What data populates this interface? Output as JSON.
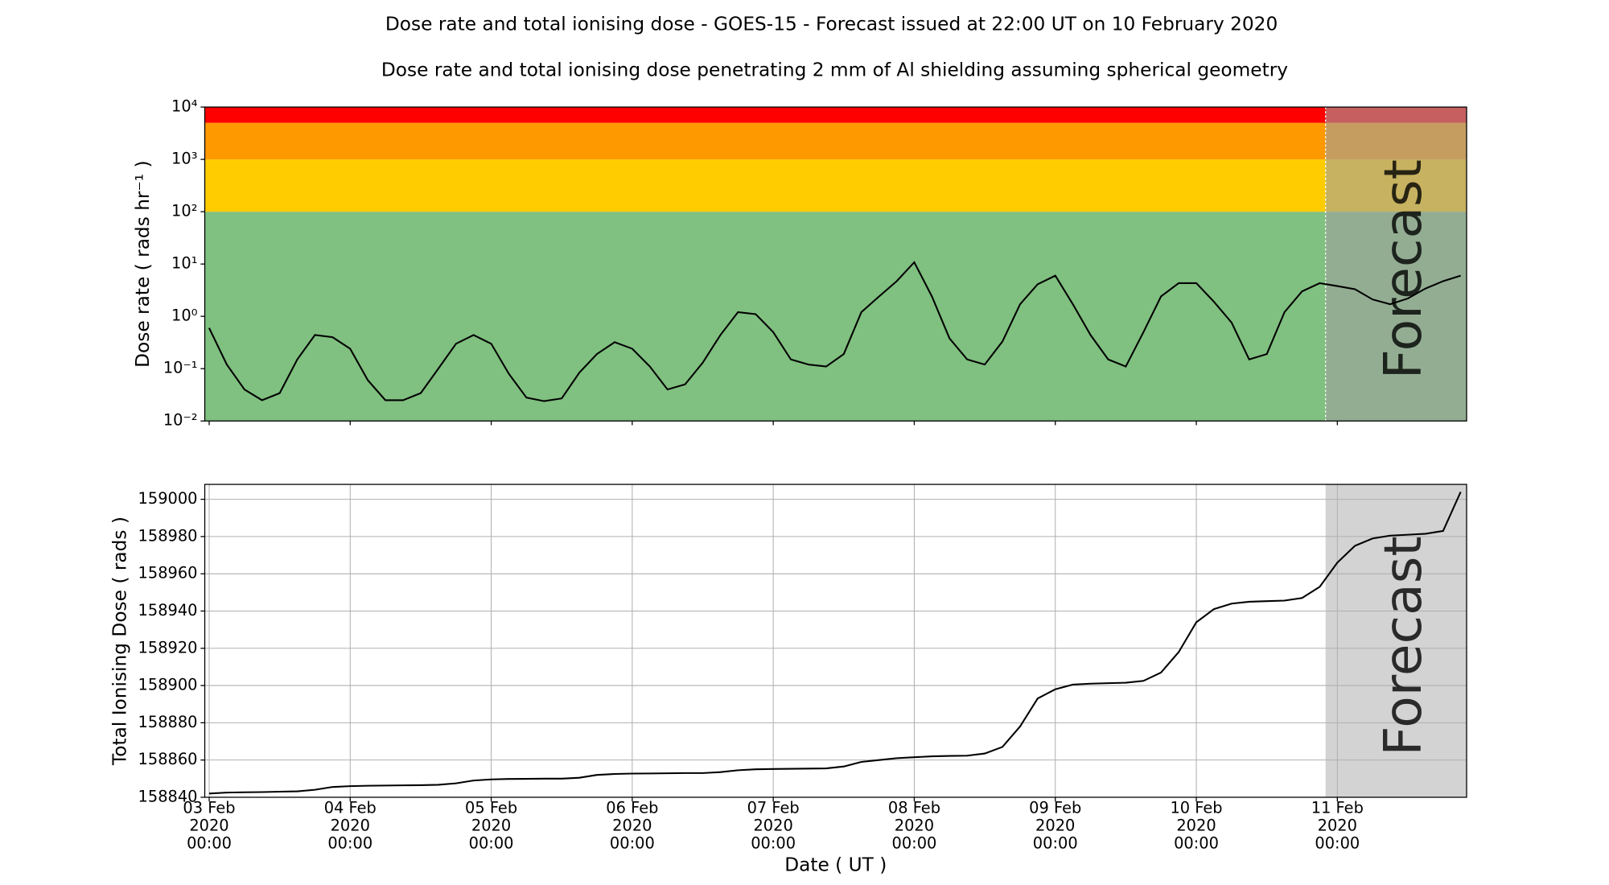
{
  "chart_data": [
    {
      "type": "line",
      "title": "Dose rate and total ionising dose - GOES-15 - Forecast issued at 22:00 UT on 10 February 2020",
      "subtitle": "Dose rate and total ionising dose penetrating 2 mm of Al shielding assuming spherical geometry",
      "y_label": "Dose rate ( rads hr⁻¹ )",
      "log_y": true,
      "grid": false,
      "color": "#000000",
      "bands": [
        {
          "ylim": [
            0.01,
            100
          ],
          "color": "#80c080"
        },
        {
          "ylim": [
            100,
            1000
          ],
          "color": "#ffcc00"
        },
        {
          "ylim": [
            1000,
            5000
          ],
          "color": "#ff9900"
        },
        {
          "ylim": [
            5000,
            10000
          ],
          "color": "#ff0000"
        }
      ],
      "forecast": {
        "label": "Forecast",
        "start": "2020-02-10 22:00",
        "color": "#a0a0a0"
      },
      "xlim": [
        "2020-02-02 23:15",
        "2020-02-11 22:00"
      ],
      "xticks": [
        "2020-02-03 00:00",
        "2020-02-04 00:00",
        "2020-02-05 00:00",
        "2020-02-06 00:00",
        "2020-02-07 00:00",
        "2020-02-08 00:00",
        "2020-02-09 00:00",
        "2020-02-10 00:00",
        "2020-02-11 00:00"
      ],
      "ylim": [
        0.01,
        10000
      ],
      "yticks": [
        {
          "value": 0.01,
          "label": "10⁻²"
        },
        {
          "value": 0.1,
          "label": "10⁻¹"
        },
        {
          "value": 1,
          "label": "10⁰"
        },
        {
          "value": 10,
          "label": "10¹"
        },
        {
          "value": 100,
          "label": "10²"
        },
        {
          "value": 1000,
          "label": "10³"
        },
        {
          "value": 10000,
          "label": "10⁴"
        }
      ],
      "x": [
        "2020-02-03 00:00",
        "2020-02-03 03:00",
        "2020-02-03 06:00",
        "2020-02-03 09:00",
        "2020-02-03 12:00",
        "2020-02-03 15:00",
        "2020-02-03 18:00",
        "2020-02-03 21:00",
        "2020-02-04 00:00",
        "2020-02-04 03:00",
        "2020-02-04 06:00",
        "2020-02-04 09:00",
        "2020-02-04 12:00",
        "2020-02-04 15:00",
        "2020-02-04 18:00",
        "2020-02-04 21:00",
        "2020-02-05 00:00",
        "2020-02-05 03:00",
        "2020-02-05 06:00",
        "2020-02-05 09:00",
        "2020-02-05 12:00",
        "2020-02-05 15:00",
        "2020-02-05 18:00",
        "2020-02-05 21:00",
        "2020-02-06 00:00",
        "2020-02-06 03:00",
        "2020-02-06 06:00",
        "2020-02-06 09:00",
        "2020-02-06 12:00",
        "2020-02-06 15:00",
        "2020-02-06 18:00",
        "2020-02-06 21:00",
        "2020-02-07 00:00",
        "2020-02-07 03:00",
        "2020-02-07 06:00",
        "2020-02-07 09:00",
        "2020-02-07 12:00",
        "2020-02-07 15:00",
        "2020-02-07 18:00",
        "2020-02-07 21:00",
        "2020-02-08 00:00",
        "2020-02-08 03:00",
        "2020-02-08 06:00",
        "2020-02-08 09:00",
        "2020-02-08 12:00",
        "2020-02-08 15:00",
        "2020-02-08 18:00",
        "2020-02-08 21:00",
        "2020-02-09 00:00",
        "2020-02-09 03:00",
        "2020-02-09 06:00",
        "2020-02-09 09:00",
        "2020-02-09 12:00",
        "2020-02-09 15:00",
        "2020-02-09 18:00",
        "2020-02-09 21:00",
        "2020-02-10 00:00",
        "2020-02-10 03:00",
        "2020-02-10 06:00",
        "2020-02-10 09:00",
        "2020-02-10 12:00",
        "2020-02-10 15:00",
        "2020-02-10 18:00",
        "2020-02-10 21:00",
        "2020-02-11 00:00",
        "2020-02-11 03:00",
        "2020-02-11 06:00",
        "2020-02-11 09:00",
        "2020-02-11 12:00",
        "2020-02-11 15:00",
        "2020-02-11 18:00",
        "2020-02-11 21:00"
      ],
      "values": [
        0.6,
        0.12,
        0.04,
        0.025,
        0.034,
        0.15,
        0.44,
        0.4,
        0.24,
        0.06,
        0.025,
        0.025,
        0.034,
        0.1,
        0.3,
        0.44,
        0.3,
        0.08,
        0.028,
        0.024,
        0.027,
        0.084,
        0.19,
        0.32,
        0.24,
        0.11,
        0.04,
        0.05,
        0.13,
        0.44,
        1.2,
        1.1,
        0.5,
        0.15,
        0.12,
        0.11,
        0.19,
        1.2,
        2.4,
        4.7,
        10.8,
        2.4,
        0.38,
        0.15,
        0.12,
        0.33,
        1.7,
        4.1,
        6,
        1.7,
        0.44,
        0.15,
        0.11,
        0.5,
        2.4,
        4.3,
        4.3,
        1.9,
        0.76,
        0.15,
        0.19,
        1.2,
        3,
        4.3,
        3.8,
        3.3,
        2.1,
        1.7,
        2.2,
        3.4,
        4.7,
        6
      ]
    },
    {
      "type": "line",
      "y_label": "Total Ionising Dose ( rads )",
      "x_label": "Date ( UT )",
      "log_y": false,
      "grid": true,
      "color": "#000000",
      "forecast": {
        "label": "Forecast",
        "start": "2020-02-10 22:00",
        "color": "#d3d3d3"
      },
      "xlim": [
        "2020-02-02 23:15",
        "2020-02-11 22:00"
      ],
      "xticks": [
        {
          "value": "2020-02-03 00:00",
          "label": "03 Feb\n2020\n00:00"
        },
        {
          "value": "2020-02-04 00:00",
          "label": "04 Feb\n2020\n00:00"
        },
        {
          "value": "2020-02-05 00:00",
          "label": "05 Feb\n2020\n00:00"
        },
        {
          "value": "2020-02-06 00:00",
          "label": "06 Feb\n2020\n00:00"
        },
        {
          "value": "2020-02-07 00:00",
          "label": "07 Feb\n2020\n00:00"
        },
        {
          "value": "2020-02-08 00:00",
          "label": "08 Feb\n2020\n00:00"
        },
        {
          "value": "2020-02-09 00:00",
          "label": "09 Feb\n2020\n00:00"
        },
        {
          "value": "2020-02-10 00:00",
          "label": "10 Feb\n2020\n00:00"
        },
        {
          "value": "2020-02-11 00:00",
          "label": "11 Feb\n2020\n00:00"
        }
      ],
      "ylim": [
        158840,
        159008
      ],
      "yticks": [
        158840,
        158860,
        158880,
        158900,
        158920,
        158940,
        158960,
        158980,
        159000
      ],
      "x": [
        "2020-02-03 00:00",
        "2020-02-03 03:00",
        "2020-02-03 06:00",
        "2020-02-03 09:00",
        "2020-02-03 12:00",
        "2020-02-03 15:00",
        "2020-02-03 18:00",
        "2020-02-03 21:00",
        "2020-02-04 00:00",
        "2020-02-04 03:00",
        "2020-02-04 06:00",
        "2020-02-04 09:00",
        "2020-02-04 12:00",
        "2020-02-04 15:00",
        "2020-02-04 18:00",
        "2020-02-04 21:00",
        "2020-02-05 00:00",
        "2020-02-05 03:00",
        "2020-02-05 06:00",
        "2020-02-05 09:00",
        "2020-02-05 12:00",
        "2020-02-05 15:00",
        "2020-02-05 18:00",
        "2020-02-05 21:00",
        "2020-02-06 00:00",
        "2020-02-06 03:00",
        "2020-02-06 06:00",
        "2020-02-06 09:00",
        "2020-02-06 12:00",
        "2020-02-06 15:00",
        "2020-02-06 18:00",
        "2020-02-06 21:00",
        "2020-02-07 00:00",
        "2020-02-07 03:00",
        "2020-02-07 06:00",
        "2020-02-07 09:00",
        "2020-02-07 12:00",
        "2020-02-07 15:00",
        "2020-02-07 18:00",
        "2020-02-07 21:00",
        "2020-02-08 00:00",
        "2020-02-08 03:00",
        "2020-02-08 06:00",
        "2020-02-08 09:00",
        "2020-02-08 12:00",
        "2020-02-08 15:00",
        "2020-02-08 18:00",
        "2020-02-08 21:00",
        "2020-02-09 00:00",
        "2020-02-09 03:00",
        "2020-02-09 06:00",
        "2020-02-09 09:00",
        "2020-02-09 12:00",
        "2020-02-09 15:00",
        "2020-02-09 18:00",
        "2020-02-09 21:00",
        "2020-02-10 00:00",
        "2020-02-10 03:00",
        "2020-02-10 06:00",
        "2020-02-10 09:00",
        "2020-02-10 12:00",
        "2020-02-10 15:00",
        "2020-02-10 18:00",
        "2020-02-10 21:00",
        "2020-02-11 00:00",
        "2020-02-11 03:00",
        "2020-02-11 06:00",
        "2020-02-11 09:00",
        "2020-02-11 12:00",
        "2020-02-11 15:00",
        "2020-02-11 18:00",
        "2020-02-11 21:00"
      ],
      "values": [
        158842,
        158842.5,
        158842.7,
        158842.8,
        158843,
        158843.2,
        158844,
        158845.5,
        158846,
        158846.2,
        158846.3,
        158846.4,
        158846.5,
        158846.7,
        158847.5,
        158849,
        158849.6,
        158849.8,
        158849.9,
        158850,
        158850,
        158850.5,
        158852,
        158852.5,
        158852.7,
        158852.8,
        158852.9,
        158853,
        158853,
        158853.5,
        158854.5,
        158855,
        158855.2,
        158855.3,
        158855.4,
        158855.5,
        158856.5,
        158859,
        158860,
        158861,
        158861.5,
        158862,
        158862.2,
        158862.3,
        158863.5,
        158867,
        158878,
        158893,
        158898,
        158900.5,
        158901,
        158901.3,
        158901.5,
        158902.5,
        158907,
        158918,
        158934,
        158941,
        158944,
        158945,
        158945.3,
        158945.6,
        158947,
        158953,
        158966,
        158975,
        158979,
        158980.5,
        158981,
        158981.5,
        158983,
        159004
      ]
    }
  ]
}
